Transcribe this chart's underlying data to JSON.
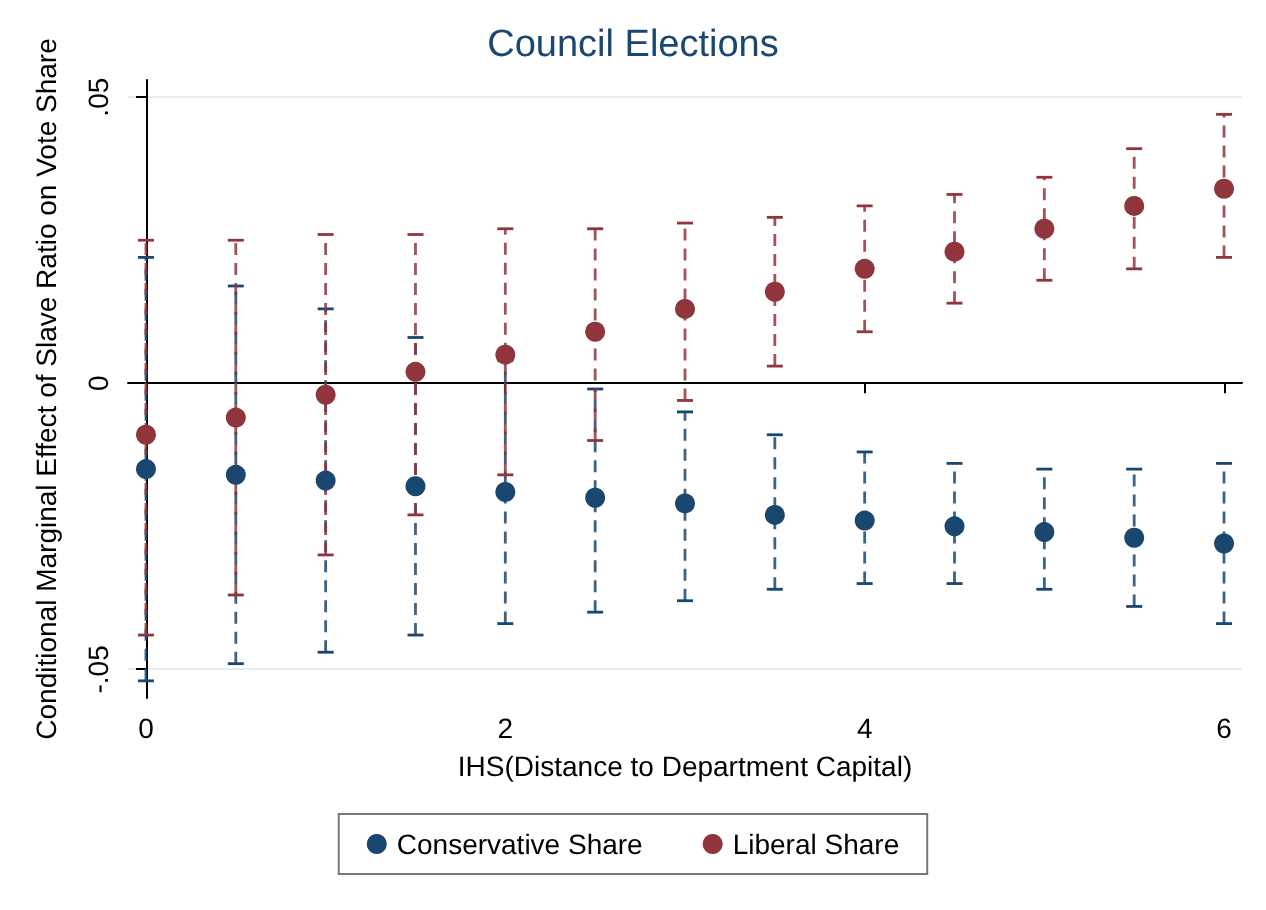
{
  "chart_data": {
    "type": "scatter",
    "title": "Council Elections",
    "xlabel": "IHS(Distance to Department Capital)",
    "ylabel": "Conditional Marginal Effect of Slave Ratio on Vote Share",
    "x": [
      0,
      0.5,
      1,
      1.5,
      2,
      2.5,
      3,
      3.5,
      4,
      4.5,
      5,
      5.5,
      6
    ],
    "series": [
      {
        "name": "Conservative Share",
        "color": "#1a476f",
        "values": [
          -0.015,
          -0.016,
          -0.017,
          -0.018,
          -0.019,
          -0.02,
          -0.021,
          -0.023,
          -0.024,
          -0.025,
          -0.026,
          -0.027,
          -0.028
        ],
        "errors": [
          [
            -0.052,
            0.022
          ],
          [
            -0.049,
            0.017
          ],
          [
            -0.047,
            0.013
          ],
          [
            -0.044,
            0.008
          ],
          [
            -0.042,
            0.004
          ],
          [
            -0.04,
            -0.001
          ],
          [
            -0.038,
            -0.005
          ],
          [
            -0.036,
            -0.009
          ],
          [
            -0.035,
            -0.012
          ],
          [
            -0.035,
            -0.014
          ],
          [
            -0.036,
            -0.015
          ],
          [
            -0.039,
            -0.015
          ],
          [
            -0.042,
            -0.014
          ]
        ]
      },
      {
        "name": "Liberal Share",
        "color": "#90353b",
        "values": [
          -0.009,
          -0.006,
          -0.002,
          0.002,
          0.005,
          0.009,
          0.013,
          0.016,
          0.02,
          0.023,
          0.027,
          0.031,
          0.034
        ],
        "errors": [
          [
            -0.044,
            0.025
          ],
          [
            -0.037,
            0.025
          ],
          [
            -0.03,
            0.026
          ],
          [
            -0.023,
            0.026
          ],
          [
            -0.016,
            0.027
          ],
          [
            -0.01,
            0.027
          ],
          [
            -0.003,
            0.028
          ],
          [
            0.003,
            0.029
          ],
          [
            0.009,
            0.031
          ],
          [
            0.014,
            0.033
          ],
          [
            0.018,
            0.036
          ],
          [
            0.02,
            0.041
          ],
          [
            0.022,
            0.047
          ]
        ]
      }
    ],
    "xlim": [
      -0.1,
      6.1
    ],
    "xticks": [
      0,
      2,
      4,
      6
    ],
    "ylim": [
      -0.055,
      0.053
    ],
    "yticks": [
      {
        "value": -0.05,
        "label": "-.05"
      },
      0,
      {
        "value": 0.05,
        "label": ".05"
      }
    ],
    "grid": "y",
    "legend": "bottom",
    "marker": "circle",
    "line_style": "dashed"
  }
}
